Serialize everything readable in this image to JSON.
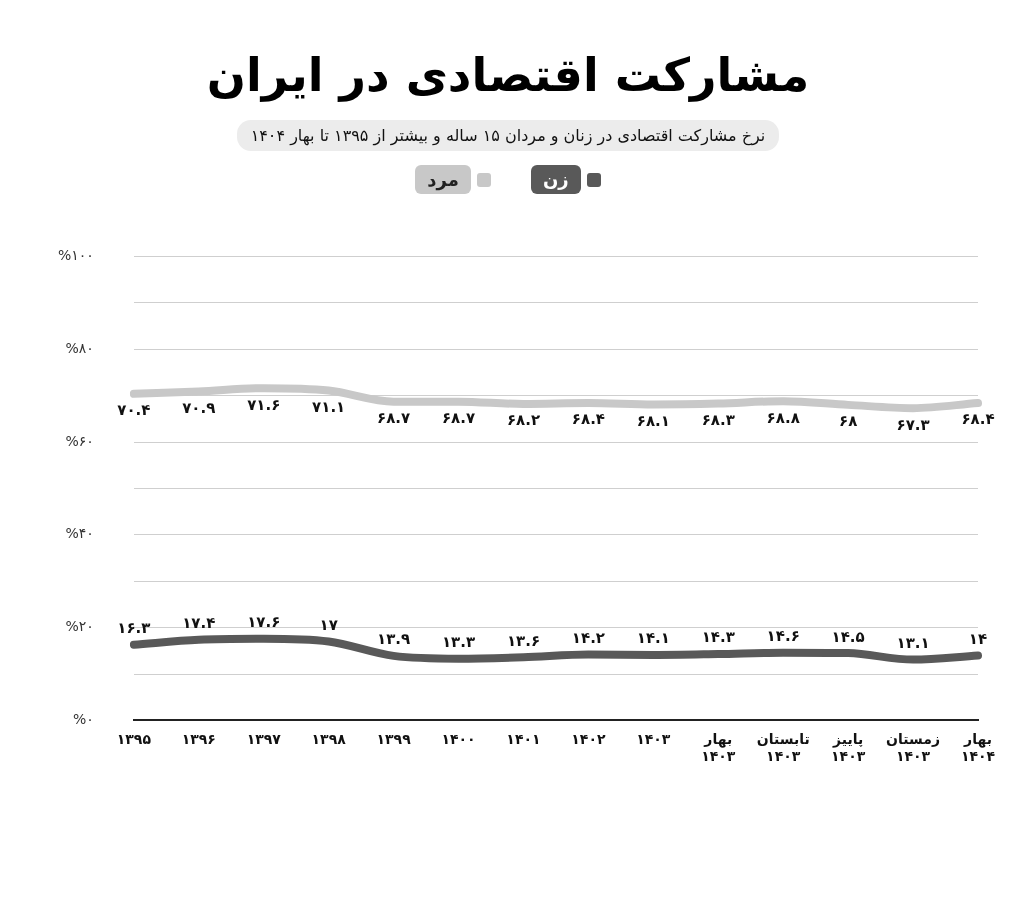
{
  "chart_data": {
    "type": "line",
    "title": "مشارکت اقتصادی در ایران",
    "subtitle": "نرخ مشارکت اقتصادی در زنان و مردان ۱۵ ساله و بیشتر از ۱۳۹۵ تا بهار ۱۴۰۴",
    "categories": [
      "۱۳۹۵",
      "۱۳۹۶",
      "۱۳۹۷",
      "۱۳۹۸",
      "۱۳۹۹",
      "۱۴۰۰",
      "۱۴۰۱",
      "۱۴۰۲",
      "۱۴۰۳",
      "بهار ۱۴۰۳",
      "تابستان ۱۴۰۳",
      "پاییز ۱۴۰۳",
      "زمستان ۱۴۰۳",
      "بهار ۱۴۰۴"
    ],
    "series": [
      {
        "name": "زن",
        "color": "#595959",
        "values": [
          16.3,
          17.4,
          17.6,
          17,
          13.9,
          13.3,
          13.6,
          14.2,
          14.1,
          14.3,
          14.6,
          14.5,
          13.1,
          14
        ],
        "value_labels": [
          "۱۶.۳",
          "۱۷.۴",
          "۱۷.۶",
          "۱۷",
          "۱۳.۹",
          "۱۳.۳",
          "۱۳.۶",
          "۱۴.۲",
          "۱۴.۱",
          "۱۴.۳",
          "۱۴.۶",
          "۱۴.۵",
          "۱۳.۱",
          "۱۴"
        ]
      },
      {
        "name": "مرد",
        "color": "#c8c8c8",
        "values": [
          70.4,
          70.9,
          71.6,
          71.1,
          68.7,
          68.7,
          68.2,
          68.4,
          68.1,
          68.3,
          68.8,
          68,
          67.3,
          68.4
        ],
        "value_labels": [
          "۷۰.۴",
          "۷۰.۹",
          "۷۱.۶",
          "۷۱.۱",
          "۶۸.۷",
          "۶۸.۷",
          "۶۸.۲",
          "۶۸.۴",
          "۶۸.۱",
          "۶۸.۳",
          "۶۸.۸",
          "۶۸",
          "۶۷.۳",
          "۶۸.۴"
        ]
      }
    ],
    "ylim": [
      0,
      100
    ],
    "yticks": [
      {
        "value": 0,
        "label": "%۰"
      },
      {
        "value": 10,
        "label": null
      },
      {
        "value": 20,
        "label": "%۲۰"
      },
      {
        "value": 30,
        "label": null
      },
      {
        "value": 40,
        "label": "%۴۰"
      },
      {
        "value": 50,
        "label": null
      },
      {
        "value": 60,
        "label": "%۶۰"
      },
      {
        "value": 70,
        "label": null
      },
      {
        "value": 80,
        "label": "%۸۰"
      },
      {
        "value": 90,
        "label": null
      },
      {
        "value": 100,
        "label": "%۱۰۰"
      }
    ],
    "grid": "y",
    "legend": "top",
    "marker": "none",
    "line_style": "solid"
  }
}
